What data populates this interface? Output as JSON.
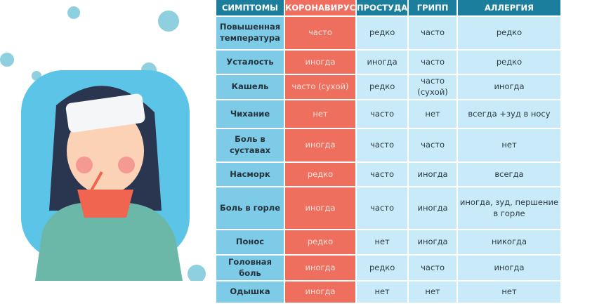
{
  "headers": [
    "СИМПТОМЫ",
    "КОРОНАВИРУС",
    "ПРОСТУДА",
    "ГРИПП",
    "АЛЛЕРГИЯ"
  ],
  "rows": [
    [
      "Повышенная температура",
      "часто",
      "редко",
      "часто",
      "редко"
    ],
    [
      "Усталость",
      "иногда",
      "иногда",
      "часто",
      "редко"
    ],
    [
      "Кашель",
      "часто (сухой)",
      "редко",
      "часто (сухой)",
      "иногда"
    ],
    [
      "Чихание",
      "нет",
      "часто",
      "нет",
      "всегда +зуд в носу"
    ],
    [
      "Боль в суставах",
      "иногда",
      "часто",
      "часто",
      "нет"
    ],
    [
      "Насморк",
      "редко",
      "часто",
      "иногда",
      "всегда"
    ],
    [
      "Боль в горле",
      "иногда",
      "часто",
      "иногда",
      "иногда, зуд, першение в горле"
    ],
    [
      "Понос",
      "редко",
      "нет",
      "иногда",
      "никогда"
    ],
    [
      "Головная боль",
      "иногда",
      "редко",
      "часто",
      "иногда"
    ],
    [
      "Одышка",
      "иногда",
      "нет",
      "нет",
      "нет"
    ]
  ],
  "colors": {
    "header": "#1b7e9c",
    "coronavirus": "#ef6e5f",
    "symptom": "#7ecbe7",
    "cell": "#c9eaf9"
  }
}
